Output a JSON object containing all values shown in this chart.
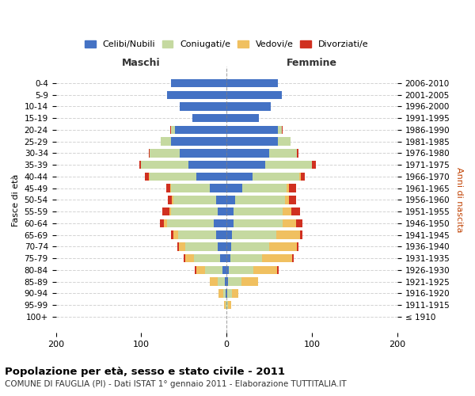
{
  "age_groups": [
    "100+",
    "95-99",
    "90-94",
    "85-89",
    "80-84",
    "75-79",
    "70-74",
    "65-69",
    "60-64",
    "55-59",
    "50-54",
    "45-49",
    "40-44",
    "35-39",
    "30-34",
    "25-29",
    "20-24",
    "15-19",
    "10-14",
    "5-9",
    "0-4"
  ],
  "birth_years": [
    "≤ 1910",
    "1911-1915",
    "1916-1920",
    "1921-1925",
    "1926-1930",
    "1931-1935",
    "1936-1940",
    "1941-1945",
    "1946-1950",
    "1951-1955",
    "1956-1960",
    "1961-1965",
    "1966-1970",
    "1971-1975",
    "1976-1980",
    "1981-1985",
    "1986-1990",
    "1991-1995",
    "1996-2000",
    "2001-2005",
    "2006-2010"
  ],
  "colors": {
    "celibe": "#4472c4",
    "coniugato": "#c5d9a0",
    "vedovo": "#f0c060",
    "divorziato": "#d03020"
  },
  "maschi": {
    "celibe": [
      0,
      0,
      1,
      2,
      5,
      8,
      10,
      12,
      15,
      10,
      12,
      20,
      35,
      45,
      55,
      65,
      60,
      40,
      55,
      70,
      65
    ],
    "coniugato": [
      0,
      1,
      3,
      8,
      20,
      30,
      38,
      45,
      55,
      55,
      50,
      45,
      55,
      55,
      35,
      12,
      5,
      0,
      0,
      0,
      0
    ],
    "vedovo": [
      0,
      2,
      5,
      10,
      10,
      10,
      8,
      5,
      3,
      2,
      2,
      1,
      1,
      0,
      0,
      0,
      0,
      0,
      0,
      0,
      0
    ],
    "divorziato": [
      0,
      0,
      0,
      0,
      2,
      2,
      2,
      3,
      5,
      8,
      5,
      5,
      5,
      2,
      1,
      0,
      1,
      0,
      0,
      0,
      0
    ]
  },
  "femmine": {
    "nubile": [
      0,
      0,
      1,
      2,
      3,
      4,
      5,
      6,
      8,
      8,
      10,
      18,
      30,
      45,
      50,
      60,
      60,
      38,
      52,
      65,
      60
    ],
    "coniugata": [
      0,
      2,
      5,
      15,
      28,
      38,
      45,
      52,
      58,
      58,
      58,
      52,
      55,
      55,
      32,
      15,
      5,
      0,
      0,
      0,
      0
    ],
    "vedova": [
      0,
      3,
      8,
      20,
      28,
      35,
      32,
      28,
      15,
      10,
      5,
      3,
      2,
      0,
      0,
      0,
      0,
      0,
      0,
      0,
      0
    ],
    "divorziata": [
      0,
      0,
      0,
      0,
      2,
      2,
      2,
      3,
      8,
      10,
      8,
      8,
      5,
      5,
      2,
      0,
      1,
      0,
      0,
      0,
      0
    ]
  },
  "title": "Popolazione per età, sesso e stato civile - 2011",
  "subtitle": "COMUNE DI FAUGLIA (PI) - Dati ISTAT 1° gennaio 2011 - Elaborazione TUTTITALIA.IT",
  "xlabel_left": "Maschi",
  "xlabel_right": "Femmine",
  "ylabel_left": "Fasce di età",
  "ylabel_right": "Anni di nascita",
  "xlim": 200,
  "legend_labels": [
    "Celibi/Nubili",
    "Coniugati/e",
    "Vedovi/e",
    "Divorziati/e"
  ]
}
